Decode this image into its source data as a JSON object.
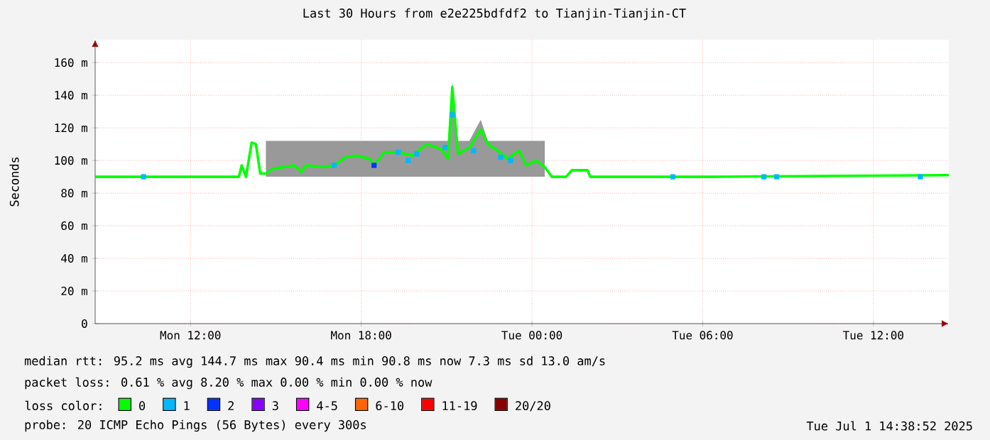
{
  "chart_data": {
    "type": "line",
    "title": "Last 30 Hours from e2e225bdfdf2 to Tianjin-Tianjin-CT",
    "ylabel": "Seconds",
    "xlim": [
      "2025-06-30T08:39",
      "2025-07-01T14:39"
    ],
    "xticks": [
      {
        "value": "2025-06-30T12:00",
        "label": "Mon 12:00"
      },
      {
        "value": "2025-06-30T18:00",
        "label": "Mon 18:00"
      },
      {
        "value": "2025-07-01T00:00",
        "label": "Tue 00:00"
      },
      {
        "value": "2025-07-01T06:00",
        "label": "Tue 06:00"
      },
      {
        "value": "2025-07-01T12:00",
        "label": "Tue 12:00"
      }
    ],
    "ylim": [
      0,
      174
    ],
    "yticks": [
      0,
      {
        "value": 20,
        "label": "20 m"
      },
      {
        "value": 40,
        "label": "40 m"
      },
      {
        "value": 60,
        "label": "60 m"
      },
      {
        "value": 80,
        "label": "80 m"
      },
      {
        "value": 100,
        "label": "100 m"
      },
      {
        "value": 120,
        "label": "120 m"
      },
      {
        "value": 140,
        "label": "140 m"
      },
      {
        "value": 160,
        "label": "160 m"
      }
    ],
    "grid": true,
    "legend": "bottom",
    "legend_title": "loss color:",
    "series": [
      {
        "name": "0",
        "color": "#00ff00",
        "marker": "none",
        "line_style": "solid",
        "x": [
          "2025-06-30T08:39",
          "2025-06-30T10:21",
          "2025-06-30T13:42",
          "2025-06-30T13:48",
          "2025-06-30T13:57",
          "2025-06-30T14:09",
          "2025-06-30T14:18",
          "2025-06-30T14:27",
          "2025-06-30T14:39",
          "2025-06-30T14:54",
          "2025-06-30T15:18",
          "2025-06-30T15:39",
          "2025-06-30T15:54",
          "2025-06-30T16:03",
          "2025-06-30T16:39",
          "2025-06-30T17:03",
          "2025-06-30T17:27",
          "2025-06-30T17:48",
          "2025-06-30T18:18",
          "2025-06-30T18:27",
          "2025-06-30T18:48",
          "2025-06-30T19:18",
          "2025-06-30T19:48",
          "2025-06-30T20:18",
          "2025-06-30T20:48",
          "2025-06-30T21:03",
          "2025-06-30T21:12",
          "2025-06-30T21:24",
          "2025-06-30T21:48",
          "2025-06-30T22:12",
          "2025-06-30T22:27",
          "2025-06-30T22:48",
          "2025-06-30T23:09",
          "2025-06-30T23:33",
          "2025-06-30T23:48",
          "2025-07-01T00:09",
          "2025-07-01T00:27",
          "2025-07-01T00:42",
          "2025-07-01T01:12",
          "2025-07-01T01:24",
          "2025-07-01T01:57",
          "2025-07-01T02:03",
          "2025-07-01T06:18",
          "2025-07-01T14:39"
        ],
        "values": [
          90,
          90,
          90,
          97,
          90,
          111,
          110,
          92,
          92,
          95,
          96,
          97,
          93,
          97,
          96,
          97,
          102,
          103,
          101,
          97,
          105,
          105,
          103,
          110,
          107,
          101,
          145,
          104,
          108,
          119,
          110,
          106,
          101,
          106,
          97,
          100,
          96,
          90,
          90,
          94,
          94,
          90,
          90,
          91
        ],
        "lower": [
          null,
          null,
          null,
          null,
          null,
          null,
          null,
          null,
          90,
          90,
          90,
          90,
          90,
          90,
          90,
          90,
          90,
          90,
          90,
          90,
          90,
          90,
          90,
          90,
          90,
          90,
          90,
          90,
          90,
          90,
          90,
          90,
          90,
          90,
          90,
          90,
          90,
          null,
          null,
          null,
          null,
          null,
          null,
          null
        ],
        "upper": [
          null,
          null,
          null,
          null,
          null,
          null,
          null,
          null,
          112,
          112,
          112,
          112,
          112,
          112,
          112,
          112,
          112,
          112,
          112,
          112,
          112,
          112,
          112,
          112,
          112,
          112,
          148,
          112,
          112,
          125,
          112,
          112,
          112,
          112,
          112,
          112,
          112,
          null,
          null,
          null,
          null,
          null,
          null,
          null
        ]
      },
      {
        "name": "1",
        "color": "#00b8ff",
        "type": "scatter",
        "marker": "square",
        "x": [
          "2025-06-30T10:21",
          "2025-06-30T17:03",
          "2025-06-30T19:18",
          "2025-06-30T19:39",
          "2025-06-30T19:57",
          "2025-06-30T20:57",
          "2025-06-30T21:12",
          "2025-06-30T21:57",
          "2025-06-30T22:54",
          "2025-06-30T23:15",
          "2025-07-01T04:57",
          "2025-07-01T08:09",
          "2025-07-01T08:36",
          "2025-07-01T13:39"
        ],
        "values": [
          90,
          97,
          105,
          100,
          104,
          108,
          128,
          106,
          102,
          100,
          90,
          90,
          90,
          90
        ]
      },
      {
        "name": "2",
        "color": "#0033ff",
        "type": "scatter",
        "marker": "square",
        "x": [
          "2025-06-30T18:27"
        ],
        "values": [
          97
        ]
      },
      {
        "name": "3",
        "color": "#8800ff"
      },
      {
        "name": "4-5",
        "color": "#ff00ff"
      },
      {
        "name": "6-10",
        "color": "#ff6600"
      },
      {
        "name": "11-19",
        "color": "#ff0000"
      },
      {
        "name": "20/20",
        "color": "#880000"
      }
    ],
    "annotations": [
      "median rtt: 95.2 ms avg 144.7 ms max 90.4 ms min 90.8 ms now 7.3 ms sd 13.0 am/s",
      "packet loss: 0.61 % avg 8.20 % max 0.00 % min 0.00 % now",
      "probe: 20 ICMP Echo Pings (56 Bytes) every 300s",
      "Tue Jul 1 14:38:52 2025"
    ]
  }
}
